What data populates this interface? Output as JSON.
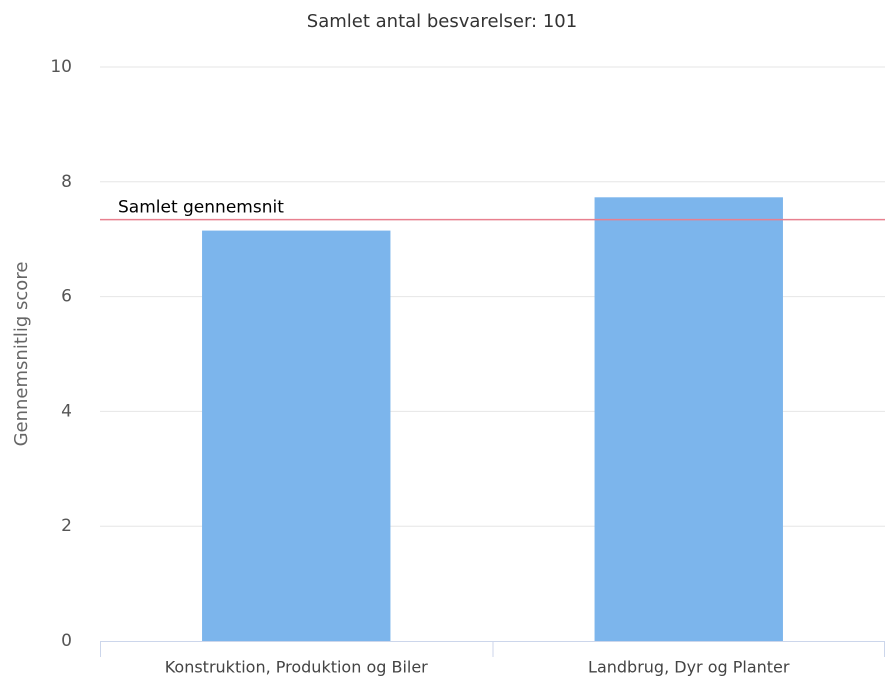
{
  "chart_data": {
    "type": "bar",
    "title": "Samlet antal besvarelser: 101",
    "y_label": "Gennemsnitlig score",
    "categories": [
      "Konstruktion, Produktion og Biler",
      "Landbrug, Dyr og Planter"
    ],
    "values": [
      7.15,
      7.73
    ],
    "color": "#7cb5ec",
    "ylim": [
      0,
      10
    ],
    "yticks": [
      0,
      2,
      4,
      6,
      8,
      10
    ],
    "grid": true,
    "reference_line": {
      "label": "Samlet gennemsnit",
      "value": 7.34,
      "color": "#e8808f"
    }
  }
}
